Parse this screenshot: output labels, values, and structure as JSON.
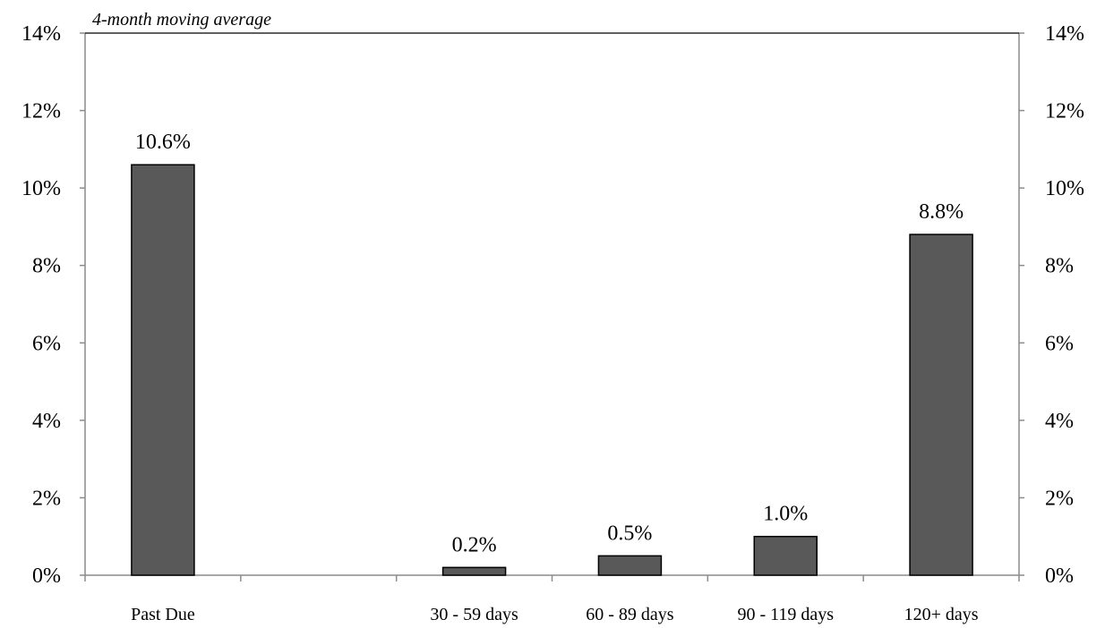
{
  "chart_data": {
    "type": "bar",
    "subtitle": "4-month moving average",
    "categories": [
      "Past Due",
      "",
      "30 - 59 days",
      "60 - 89 days",
      "90 - 119 days",
      "120+ days"
    ],
    "values": [
      10.6,
      null,
      0.2,
      0.5,
      1.0,
      8.8
    ],
    "data_labels": [
      "10.6%",
      "",
      "0.2%",
      "0.5%",
      "1.0%",
      "8.8%"
    ],
    "ylim": [
      0,
      14
    ],
    "y_ticks": [
      0,
      2,
      4,
      6,
      8,
      10,
      12,
      14
    ],
    "y_tick_labels": [
      "0%",
      "2%",
      "4%",
      "6%",
      "8%",
      "10%",
      "12%",
      "14%"
    ],
    "secondary_y_tick_labels": [
      "0%",
      "2%",
      "4%",
      "6%",
      "8%",
      "10%",
      "12%",
      "14%"
    ],
    "grid": false,
    "legend": "none",
    "bar_color": "#595959"
  }
}
